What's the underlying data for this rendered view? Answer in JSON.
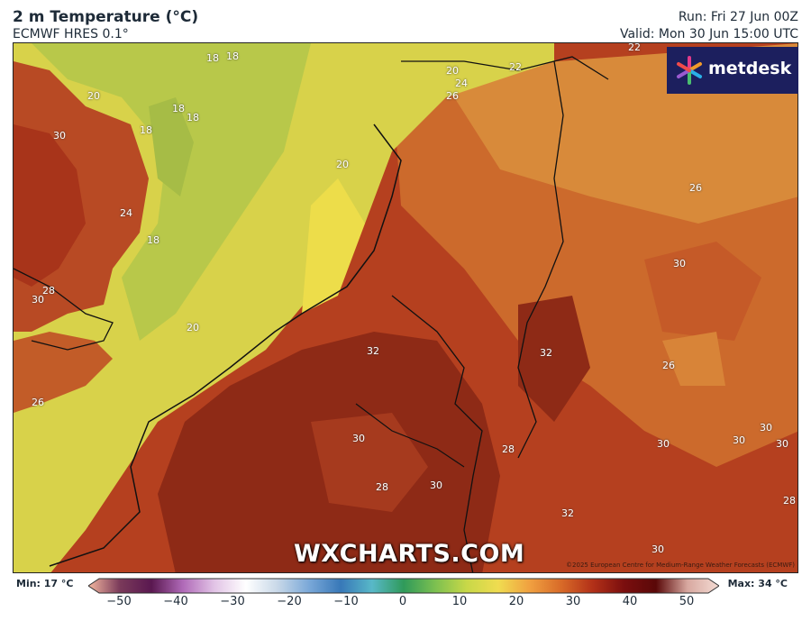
{
  "header": {
    "title": "2 m Temperature (°C)",
    "subtitle": "ECMWF HRES 0.1°",
    "run": "Run: Fri 27 Jun 00Z",
    "valid": "Valid: Mon 30 Jun 15:00 UTC"
  },
  "logo": {
    "text": "metdesk"
  },
  "watermark": "WXCHARTS.COM",
  "copyright": "©2025 European Centre for Medium-Range Weather Forecasts (ECMWF)",
  "map_labels": [
    "18",
    "18",
    "20",
    "18",
    "18",
    "18",
    "30",
    "24",
    "18",
    "20",
    "20",
    "22",
    "22",
    "24",
    "26",
    "26",
    "30",
    "28",
    "30",
    "32",
    "32",
    "26",
    "20",
    "26",
    "30",
    "28",
    "28",
    "30",
    "30",
    "30",
    "30",
    "30",
    "32",
    "30",
    "28"
  ],
  "colorbar": {
    "min_label": "Min: 17 °C",
    "max_label": "Max: 34 °C",
    "ticks": [
      "−50",
      "−40",
      "−30",
      "−20",
      "−10",
      "0",
      "10",
      "20",
      "30",
      "40",
      "50"
    ],
    "colors": [
      "#f4b8a0",
      "#7a3a5a",
      "#5a1850",
      "#b06ab8",
      "#e2c4e6",
      "#ffffff",
      "#c8d8e8",
      "#7aa8d8",
      "#3878b8",
      "#58b8c8",
      "#2f9a5a",
      "#7cc050",
      "#c8d848",
      "#f0dc50",
      "#f0a040",
      "#d86a28",
      "#b23018",
      "#7a0e0e",
      "#5a0808",
      "#d8a8a0",
      "#f4dcd4"
    ]
  }
}
